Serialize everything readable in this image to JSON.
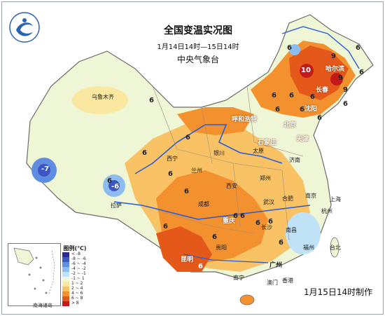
{
  "title": "全国变温实况图",
  "subtitle": "1月14日14时—15日14时",
  "agency": "中央气象台",
  "issued": "1月15日14时制作",
  "inset_label": "南海诸岛",
  "legend": {
    "title": "图例(℃)",
    "items": [
      {
        "label": "< -8",
        "color": "#2b2a8f"
      },
      {
        "label": "-8 ~ -6",
        "color": "#3e56c4"
      },
      {
        "label": "-6 ~ -4",
        "color": "#5f8ee0"
      },
      {
        "label": "-4 ~ -2",
        "color": "#8dbdf0"
      },
      {
        "label": "-2 ~ -1",
        "color": "#bfe2f6"
      },
      {
        "label": "-1 ~ 1",
        "color": "#eef6d6"
      },
      {
        "label": "1 ~ 2",
        "color": "#fbe8a0"
      },
      {
        "label": "2 ~ 4",
        "color": "#f9c264"
      },
      {
        "label": "4 ~ 6",
        "color": "#f2912d"
      },
      {
        "label": "6 ~ 8",
        "color": "#e4581a"
      },
      {
        "label": "> 8",
        "color": "#c41a1a"
      }
    ]
  },
  "cities": [
    "乌鲁木齐",
    "呼和浩特",
    "北京",
    "天津",
    "石家庄",
    "太原",
    "济南",
    "银川",
    "西宁",
    "兰州",
    "郑州",
    "西安",
    "拉萨",
    "合肥",
    "南京",
    "上海",
    "成都",
    "武汉",
    "杭州",
    "重庆",
    "长沙",
    "贵阳",
    "南昌",
    "福州",
    "昆明",
    "台北",
    "南宁",
    "广州",
    "香港",
    "澳门",
    "哈尔滨",
    "长春",
    "沈阳"
  ],
  "values": [
    "6",
    "6",
    "6",
    "6",
    "6",
    "6",
    "6",
    "6",
    "6",
    "6",
    "6",
    "6",
    "6",
    "6",
    "6",
    "6",
    "6",
    "6",
    "6",
    "6",
    "6",
    "6",
    "-7",
    "-6",
    "9",
    "9",
    "9",
    "10",
    "6",
    "6"
  ]
}
